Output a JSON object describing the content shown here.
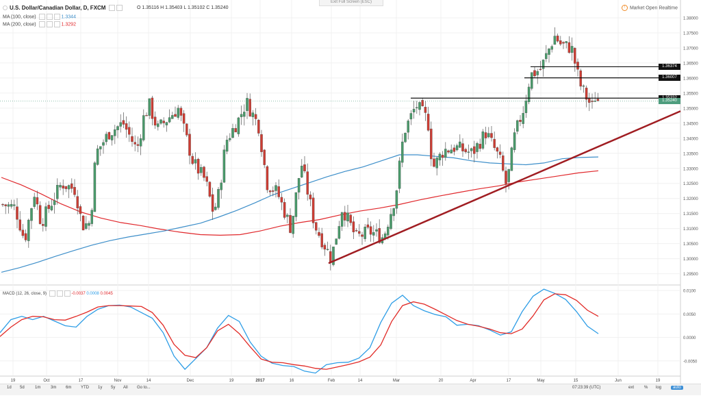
{
  "header": {
    "symbol": "U.S. Dollar/Canadian Dollar, D, FXCM",
    "ohlc": "O 1.35116  H 1.35403  L 1.35102  C 1.35240",
    "ma100_label": "MA (100, close)",
    "ma100_value": "1.3344",
    "ma200_label": "MA (200, close)",
    "ma200_value": "1.3292",
    "exit_fullscreen": "Exit Full Screen (ESC)",
    "market_status": "Market Open",
    "realtime": "Realtime"
  },
  "macd_header": {
    "label": "MACD (12, 26, close, 9)",
    "hist": "-0.0037",
    "macd": "0.0008",
    "signal": "0.0045"
  },
  "colors": {
    "up": "#4a9a6b",
    "down": "#cc3d34",
    "ma100": "#3c8ec9",
    "ma200": "#e0262a",
    "trendline": "#a01d22",
    "hline": "#111111",
    "macd_line": "#2d9de6",
    "signal_line": "#e12a26",
    "current": "#4e9d7e"
  },
  "price_labels": [
    {
      "value": 1.36374,
      "text": "1.36374",
      "bg": "#111111"
    },
    {
      "value": 1.36007,
      "text": "1.36007",
      "bg": "#111111"
    },
    {
      "value": 1.35332,
      "text": "1.35332",
      "bg": "#111111"
    },
    {
      "value": 1.3524,
      "text": "1.35240",
      "bg": "#4e9d7e"
    }
  ],
  "toolbar": {
    "timeframes": [
      "1d",
      "5d",
      "1m",
      "3m",
      "6m",
      "YTD",
      "1y",
      "5y",
      "All",
      "Go to..."
    ],
    "clock": "07:23:39 (UTC)",
    "right_buttons": [
      "ext",
      "%",
      "log",
      "auto"
    ]
  },
  "chart_data": {
    "type": "candlestick",
    "x_ticks": [
      "19",
      "Oct",
      "17",
      "Nov",
      "14",
      "Dec",
      "19",
      "2017",
      "16",
      "Feb",
      "14",
      "Mar",
      "20",
      "Apr",
      "17",
      "May",
      "15",
      "Jun",
      "19"
    ],
    "y_ticks": [
      "1.38000",
      "1.37500",
      "1.37000",
      "1.36500",
      "1.36000",
      "1.35500",
      "1.35000",
      "1.34500",
      "1.34000",
      "1.33500",
      "1.33000",
      "1.32500",
      "1.32000",
      "1.31500",
      "1.31000",
      "1.30500",
      "1.30000",
      "1.29500"
    ],
    "ylim": [
      1.2915,
      1.3825
    ],
    "macd_ticks": [
      "0.0100",
      "0.0050",
      "0.0000",
      "-0.0050"
    ],
    "macd_ylim": [
      -0.0081,
      0.0109
    ],
    "ma100": [
      1.2955,
      1.297,
      1.2988,
      1.3008,
      1.3027,
      1.3045,
      1.306,
      1.3072,
      1.3082,
      1.3092,
      1.3105,
      1.3118,
      1.3138,
      1.316,
      1.3185,
      1.3212,
      1.3232,
      1.3252,
      1.3272,
      1.329,
      1.3305,
      1.3325,
      1.3345,
      1.3345,
      1.334,
      1.3335,
      1.3325,
      1.3318,
      1.3315,
      1.3312,
      1.3318,
      1.3332,
      1.3336,
      1.3338
    ],
    "ma200": [
      1.327,
      1.3245,
      1.3215,
      1.3182,
      1.3155,
      1.3135,
      1.312,
      1.311,
      1.3098,
      1.3088,
      1.308,
      1.3078,
      1.308,
      1.3092,
      1.3108,
      1.312,
      1.313,
      1.3145,
      1.3158,
      1.3168,
      1.318,
      1.3195,
      1.3208,
      1.322,
      1.3232,
      1.3242,
      1.3255,
      1.3265,
      1.3275,
      1.3285,
      1.3292
    ],
    "hlines": [
      1.36374,
      1.36007,
      1.35332
    ],
    "trendline": [
      1.2985,
      1.349
    ],
    "current_close": 1.3524,
    "macd": [
      0.001,
      0.0038,
      0.0045,
      0.0038,
      0.0045,
      0.0035,
      0.0025,
      0.0022,
      0.0045,
      0.006,
      0.0068,
      0.0069,
      0.0065,
      0.0053,
      0.0041,
      0.001,
      -0.004,
      -0.0068,
      -0.0045,
      -0.0022,
      0.002,
      0.0047,
      0.0034,
      -0.001,
      -0.004,
      -0.0055,
      -0.006,
      -0.0062,
      -0.0072,
      -0.0076,
      -0.0058,
      -0.0054,
      -0.0053,
      -0.0044,
      -0.0022,
      0.0032,
      0.0073,
      0.009,
      0.0068,
      0.0057,
      0.0049,
      0.0044,
      0.0026,
      0.0028,
      0.0025,
      0.0016,
      0.0005,
      0.0012,
      0.0055,
      0.0088,
      0.0103,
      0.0094,
      0.0081,
      0.0055,
      0.0024,
      0.0008
    ],
    "signal": [
      0.0002,
      0.0022,
      0.0038,
      0.0045,
      0.0044,
      0.0038,
      0.0037,
      0.0045,
      0.0054,
      0.0065,
      0.0068,
      0.0068,
      0.0067,
      0.0066,
      0.0053,
      0.0026,
      -0.0015,
      -0.0038,
      -0.0043,
      -0.0022,
      0.0014,
      0.0028,
      0.0008,
      -0.002,
      -0.0046,
      -0.0053,
      -0.0054,
      -0.0058,
      -0.0061,
      -0.0066,
      -0.0068,
      -0.0063,
      -0.0058,
      -0.0052,
      -0.0042,
      -0.0016,
      0.0034,
      0.0068,
      0.0076,
      0.0071,
      0.006,
      0.0048,
      0.0036,
      0.0028,
      0.0024,
      0.0018,
      0.001,
      0.0008,
      0.0018,
      0.0046,
      0.008,
      0.0093,
      0.0091,
      0.0079,
      0.0058,
      0.0045
    ]
  }
}
